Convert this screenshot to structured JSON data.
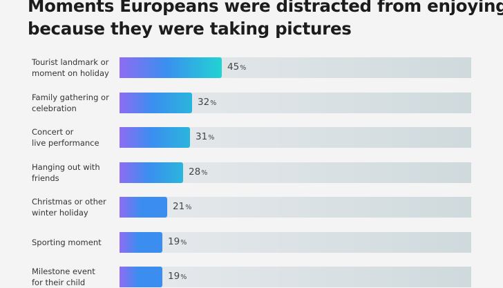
{
  "title_lines": [
    "Moments Europeans were distracted from enjoying",
    "because they were taking pictures"
  ],
  "chart_data": {
    "type": "bar",
    "orientation": "horizontal",
    "title": "Moments Europeans were distracted from enjoying because they were taking pictures",
    "unit": "%",
    "xlim": [
      0,
      100
    ],
    "categories": [
      [
        "Tourist landmark or",
        "moment on holiday"
      ],
      [
        "Family gathering or",
        "celebration"
      ],
      [
        "Concert or",
        "live performance"
      ],
      [
        "Hanging out with",
        "friends"
      ],
      [
        "Christmas or other",
        "winter holiday"
      ],
      [
        "Sporting moment"
      ],
      [
        "Milestone event",
        "for their child"
      ]
    ],
    "values": [
      45,
      32,
      31,
      28,
      21,
      19,
      19
    ],
    "colors": {
      "bar_start": "#8e6cf2",
      "bar_mid": "#3b8ef0",
      "bar_end": "#22d3d3",
      "track": "#dde3e6"
    }
  }
}
